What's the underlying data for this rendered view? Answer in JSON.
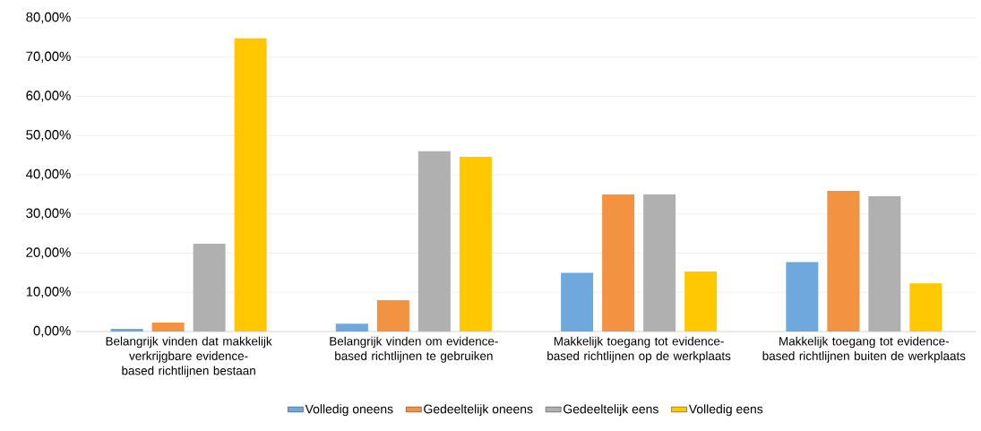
{
  "chart_data": {
    "type": "bar",
    "categories": [
      "Belangrijk vinden dat makkelijk verkrijgbare evidence-based richtlijnen bestaan",
      "Belangrijk vinden om evidence-based richtlijnen te gebruiken",
      "Makkelijk toegang tot evidence-based richtlijnen op de werkplaats",
      "Makkelijk toegang tot evidence-based richtlijnen buiten de werkplaats"
    ],
    "series": [
      {
        "name": "Volledig oneens",
        "color": "#6fa8dc",
        "values": [
          0.7,
          2,
          15,
          17.7
        ]
      },
      {
        "name": "Gedeeltelijk oneens",
        "color": "#f39240",
        "values": [
          2.3,
          8,
          35,
          35.9
        ]
      },
      {
        "name": "Gedeeltelijk eens",
        "color": "#b0b0b0",
        "values": [
          22.4,
          46,
          35,
          34.5
        ]
      },
      {
        "name": "Volledig eens",
        "color": "#ffc800",
        "values": [
          74.8,
          44.6,
          15.3,
          12.3
        ]
      }
    ],
    "ylim": [
      0,
      80
    ],
    "yticks": [
      {
        "value": 0,
        "label": "0,00%"
      },
      {
        "value": 10,
        "label": "10,00%"
      },
      {
        "value": 20,
        "label": "20,00%"
      },
      {
        "value": 30,
        "label": "30,00%"
      },
      {
        "value": 40,
        "label": "40,00%"
      },
      {
        "value": 50,
        "label": "50,00%"
      },
      {
        "value": 60,
        "label": "60,00%"
      },
      {
        "value": 70,
        "label": "70,00%"
      },
      {
        "value": 80,
        "label": "80,00%"
      }
    ],
    "grid": "y",
    "legend": "bottom"
  }
}
